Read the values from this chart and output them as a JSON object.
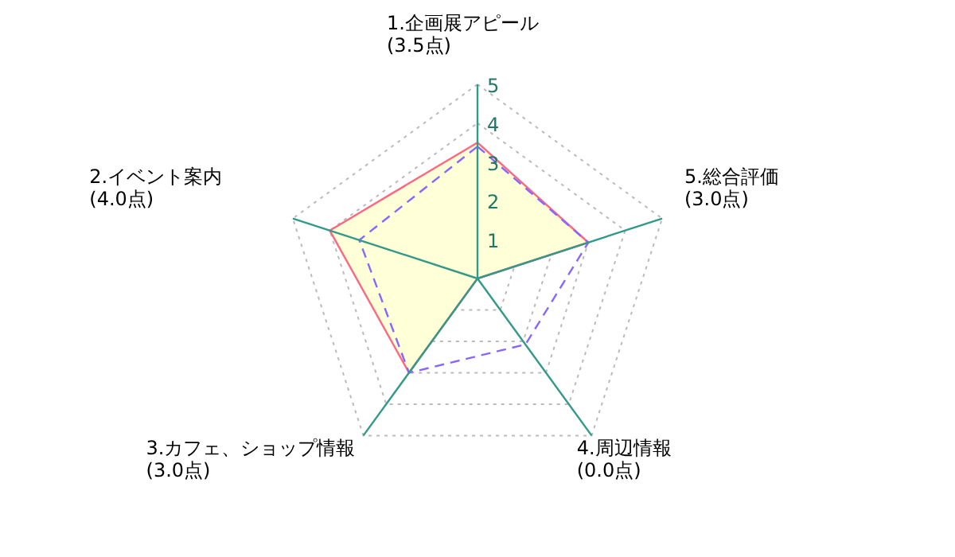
{
  "chart_data": {
    "type": "radar",
    "categories": [
      "1.企画展アピール (3.5点)",
      "5.総合評価 (3.0点)",
      "4.周辺情報 (0.0点)",
      "3.カフェ、ショップ情報 (3.0点)",
      "2.イベント案内 (4.0点)"
    ],
    "ylim": [
      0,
      5
    ],
    "yticks": [
      1,
      2,
      3,
      4,
      5
    ],
    "grid": true,
    "marker": "none",
    "series": [
      {
        "color": "#ff6680",
        "line_style": "solid",
        "values": [
          3.5,
          3.0,
          0.0,
          3.0,
          4.0
        ]
      },
      {
        "color": "#8866ff",
        "line_style": "dashed",
        "values": [
          3.4,
          3.0,
          2.1,
          3.0,
          3.2
        ]
      }
    ]
  }
}
